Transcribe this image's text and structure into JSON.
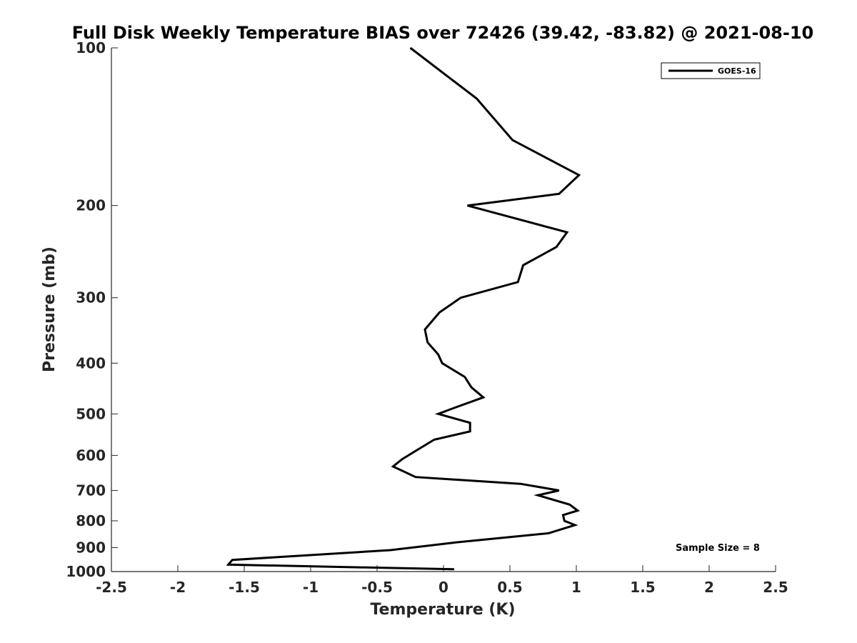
{
  "chart_data": {
    "type": "line",
    "title": "Full Disk Weekly Temperature BIAS over 72426 (39.42, -83.82) @ 2021-08-10",
    "xlabel": "Temperature (K)",
    "ylabel": "Pressure (mb)",
    "xlim": [
      -2.5,
      2.5
    ],
    "ylim": [
      100,
      1000
    ],
    "y_scale": "log",
    "y_reversed": true,
    "x_ticks": [
      "-2.5",
      "-2",
      "-1.5",
      "-1",
      "-0.5",
      "0",
      "0.5",
      "1",
      "1.5",
      "2",
      "2.5"
    ],
    "x_tick_values": [
      -2.5,
      -2,
      -1.5,
      -1,
      -0.5,
      0,
      0.5,
      1,
      1.5,
      2,
      2.5
    ],
    "y_ticks": [
      "100",
      "200",
      "300",
      "400",
      "500",
      "600",
      "700",
      "800",
      "900",
      "1000"
    ],
    "y_tick_values": [
      100,
      200,
      300,
      400,
      500,
      600,
      700,
      800,
      900,
      1000
    ],
    "grid": false,
    "legend_position": "top-right",
    "annotation": "Sample Size = 8",
    "line_color": "#000000",
    "series": [
      {
        "name": "GOES-16",
        "x": [
          -0.25,
          0.25,
          0.52,
          1.02,
          0.87,
          0.18,
          0.93,
          0.85,
          0.6,
          0.56,
          0.13,
          -0.03,
          -0.14,
          -0.12,
          -0.04,
          -0.01,
          0.16,
          0.21,
          0.3,
          0.1,
          -0.04,
          0.2,
          0.2,
          -0.07,
          -0.17,
          -0.31,
          -0.38,
          -0.21,
          0.58,
          0.87,
          0.71,
          0.95,
          1.01,
          0.9,
          0.91,
          0.99,
          0.79,
          0.09,
          -0.4,
          -1.59,
          -1.62,
          0.08
        ],
        "y": [
          100,
          125,
          150,
          175,
          190,
          200,
          225,
          240,
          260,
          280,
          300,
          320,
          345,
          365,
          385,
          400,
          425,
          445,
          465,
          485,
          500,
          520,
          540,
          560,
          580,
          610,
          630,
          660,
          680,
          700,
          715,
          745,
          765,
          780,
          800,
          815,
          845,
          880,
          910,
          950,
          970,
          990
        ]
      }
    ]
  }
}
